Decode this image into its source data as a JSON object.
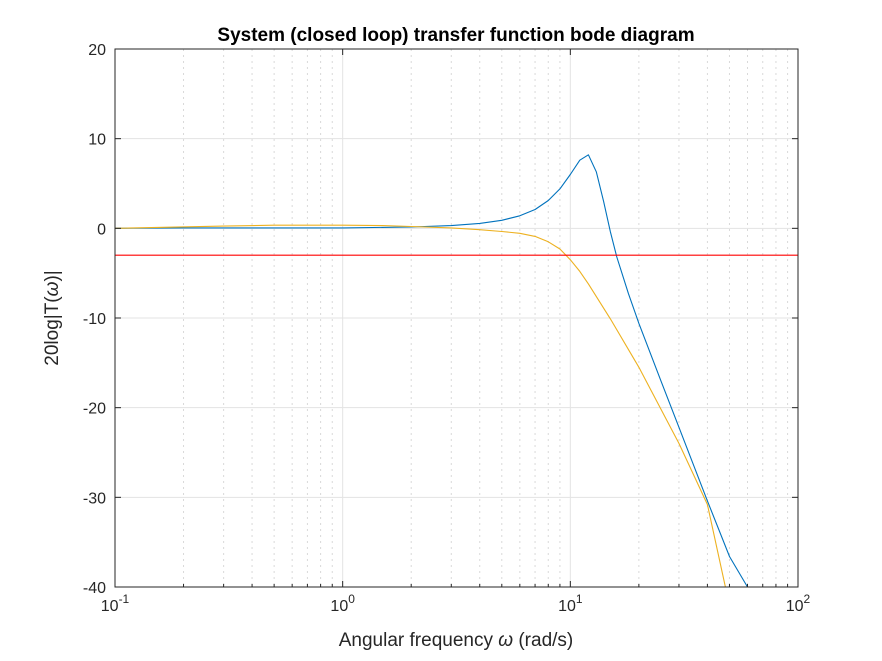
{
  "chart_data": {
    "type": "line",
    "title": "System (closed loop) transfer function bode diagram",
    "xlabel": {
      "prefix": "Angular  frequency  ",
      "symbol": "ω",
      "suffix": "  (rad/s)"
    },
    "ylabel": {
      "prefix": "20log|T(",
      "symbol": "ω",
      "suffix": ")|"
    },
    "x_scale": "log",
    "xlim": [
      0.1,
      100
    ],
    "ylim": [
      -40,
      20
    ],
    "x_ticks": [
      {
        "base": "10",
        "exp": "-1",
        "value": 0.1
      },
      {
        "base": "10",
        "exp": "0",
        "value": 1
      },
      {
        "base": "10",
        "exp": "1",
        "value": 10
      },
      {
        "base": "10",
        "exp": "2",
        "value": 100
      }
    ],
    "y_ticks": [
      "20",
      "10",
      "0",
      "-10",
      "-20",
      "-30",
      "-40"
    ],
    "y_tick_values": [
      20,
      10,
      0,
      -10,
      -20,
      -30,
      -40
    ],
    "grid": true,
    "minor_grid_x": true,
    "series": [
      {
        "color": "#0072BD",
        "x": [
          0.1,
          0.2,
          0.5,
          1,
          2,
          3,
          4,
          5,
          6,
          7,
          8,
          9,
          10,
          11,
          12,
          13,
          14,
          15,
          16,
          18,
          20,
          25,
          30,
          40,
          50,
          60
        ],
        "y": [
          0,
          0.05,
          0.05,
          0.05,
          0.15,
          0.3,
          0.55,
          0.9,
          1.4,
          2.1,
          3.1,
          4.4,
          6.0,
          7.6,
          8.2,
          6.3,
          3.0,
          -0.4,
          -3.2,
          -7.3,
          -10.6,
          -17.0,
          -22.2,
          -30.4,
          -36.6,
          -40.5
        ]
      },
      {
        "color": "#EDB120",
        "x": [
          0.1,
          0.3,
          0.5,
          1,
          1.5,
          2,
          3,
          4,
          5,
          6,
          7,
          8,
          9,
          10,
          11,
          12,
          15,
          20,
          30,
          40,
          48
        ],
        "y": [
          0,
          0.25,
          0.35,
          0.35,
          0.3,
          0.2,
          0.05,
          -0.15,
          -0.35,
          -0.55,
          -0.9,
          -1.5,
          -2.3,
          -3.5,
          -4.8,
          -6.2,
          -10.1,
          -15.5,
          -24.0,
          -30.8,
          -40
        ]
      },
      {
        "color": "#FF0000",
        "x": [
          0.1,
          100
        ],
        "y": [
          -3,
          -3
        ]
      }
    ]
  }
}
